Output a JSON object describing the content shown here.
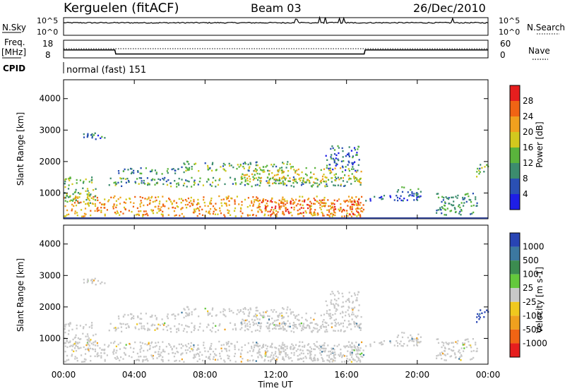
{
  "header": {
    "station": "Kerguelen (fitACF)",
    "beam": "Beam 03",
    "date": "26/Dec/2010"
  },
  "top_panels": {
    "nsky_label": "N.Sky",
    "nsearch_label": "N.Search",
    "nsky_ticks": [
      "10^5",
      "10^0"
    ],
    "nsearch_ticks": [
      "10^5",
      "10^0"
    ],
    "freq_label_1": "Freq.",
    "freq_label_2": "[MHz]",
    "freq_ticks": [
      "18",
      "8"
    ],
    "nave_label": "Nave",
    "nave_ticks": [
      "60",
      "0"
    ],
    "cpid_label": "CPID",
    "cpid_value": "normal (fast) 151"
  },
  "axes": {
    "ylabel": "Slant Range [km]",
    "xlabel": "Time UT",
    "y_ticks": [
      "1000",
      "2000",
      "3000",
      "4000"
    ],
    "x_ticks": [
      "00:00",
      "04:00",
      "08:00",
      "12:00",
      "16:00",
      "20:00",
      "00:00"
    ]
  },
  "power_scale": {
    "label": "Power [dB]",
    "ticks": [
      "4",
      "8",
      "12",
      "16",
      "20",
      "24",
      "28"
    ],
    "colors": [
      "#1e1ee6",
      "#2a50b4",
      "#3c8c6e",
      "#5ab43c",
      "#d2c81e",
      "#f0a01e",
      "#f06414",
      "#e61e1e"
    ]
  },
  "velocity_scale": {
    "label": "Velocity [m s-1]",
    "ticks": [
      "1000",
      "500",
      "100",
      "25",
      "-25",
      "-100",
      "-500",
      "-1000"
    ],
    "colors": [
      "#2844b4",
      "#3c78a0",
      "#3c8c50",
      "#64c83c",
      "#c8c8c8",
      "#f0c81e",
      "#f0a01e",
      "#f06414",
      "#e61e1e"
    ]
  },
  "chart_data": {
    "type": "heatmap",
    "x_range_hours": [
      0,
      24
    ],
    "y_range_km": [
      180,
      4600
    ],
    "frequency_mhz": [
      {
        "t": 0,
        "f": 12.5
      },
      {
        "t": 2.9,
        "f": 12.5
      },
      {
        "t": 2.95,
        "f": 10.2
      },
      {
        "t": 17.0,
        "f": 10.2
      },
      {
        "t": 17.05,
        "f": 12.5
      },
      {
        "t": 24,
        "f": 12.5
      }
    ],
    "echo_regions": [
      {
        "t0": 0.0,
        "t1": 17.0,
        "r0": 250,
        "r1": 900,
        "power_db": 22,
        "velocity": 0
      },
      {
        "t0": 0.0,
        "t1": 1.8,
        "r0": 600,
        "r1": 1500,
        "power_db": 14,
        "velocity": 0
      },
      {
        "t0": 2.5,
        "t1": 16.8,
        "r0": 1200,
        "r1": 1500,
        "power_db": 12,
        "velocity": 0
      },
      {
        "t0": 3.0,
        "t1": 7.0,
        "r0": 1600,
        "r1": 1800,
        "power_db": 10,
        "velocity": 0
      },
      {
        "t0": 6.5,
        "t1": 13.0,
        "r0": 1700,
        "r1": 2000,
        "power_db": 12,
        "velocity": 0
      },
      {
        "t0": 10.0,
        "t1": 16.8,
        "r0": 1300,
        "r1": 1800,
        "power_db": 18,
        "velocity": 0
      },
      {
        "t0": 11.0,
        "t1": 16.8,
        "r0": 300,
        "r1": 800,
        "power_db": 27,
        "velocity": 0
      },
      {
        "t0": 14.8,
        "t1": 16.8,
        "r0": 1700,
        "r1": 2500,
        "power_db": 8,
        "velocity": 0
      },
      {
        "t0": 1.0,
        "t1": 2.5,
        "r0": 2700,
        "r1": 2950,
        "power_db": 8,
        "velocity": 0
      },
      {
        "t0": 17.0,
        "t1": 20.5,
        "r0": 750,
        "r1": 950,
        "power_db": 6,
        "velocity": 0
      },
      {
        "t0": 18.8,
        "t1": 20.2,
        "r0": 900,
        "r1": 1200,
        "power_db": 10,
        "velocity": 0
      },
      {
        "t0": 21.0,
        "t1": 23.5,
        "r0": 300,
        "r1": 1000,
        "power_db": 10,
        "velocity": 0
      },
      {
        "t0": 23.3,
        "t1": 24.0,
        "r0": 1500,
        "r1": 1900,
        "power_db": 12,
        "velocity": 600
      }
    ]
  }
}
